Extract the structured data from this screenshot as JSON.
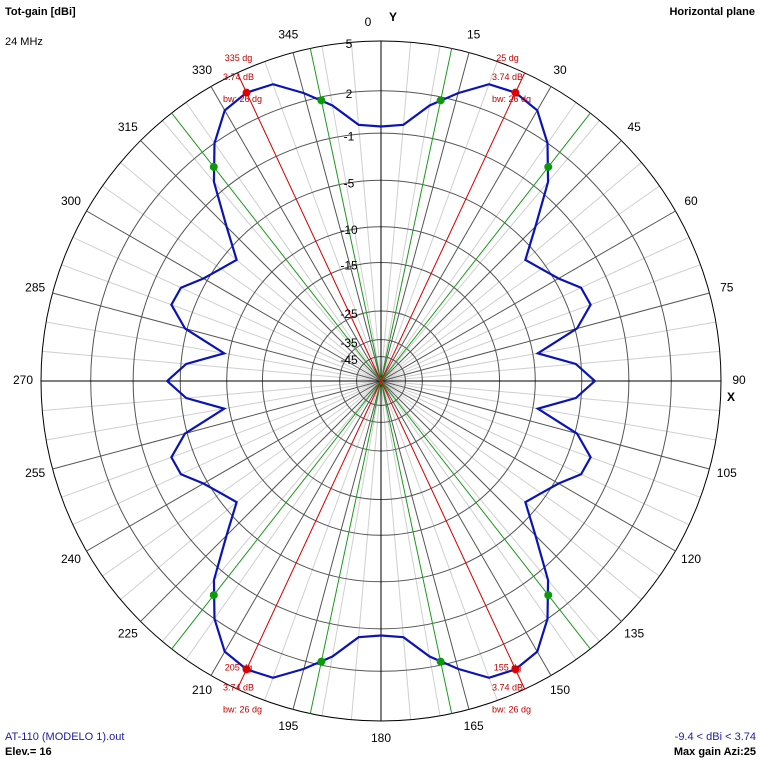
{
  "chart_data": {
    "type": "polar",
    "title": "Tot-gain [dBi]",
    "subtitle": "24 MHz",
    "plane": "Horizontal plane",
    "x_axis_label": "X",
    "y_axis_label": "Y",
    "file": "AT-110 (MODELO 1).out",
    "elevation": "Elev.= 16",
    "range_text": "-9.4 < dBi < 3.74",
    "max_gain_text": "Max gain Azi:25",
    "r_scale": "log",
    "rmax": 5,
    "rticks": [
      5,
      2,
      -1,
      -5,
      -10,
      -15,
      -25,
      -35,
      -45
    ],
    "angle_ticks": [
      0,
      15,
      30,
      45,
      60,
      75,
      90,
      105,
      120,
      135,
      150,
      165,
      180,
      195,
      210,
      225,
      240,
      255,
      270,
      285,
      300,
      315,
      330,
      345
    ],
    "x": [
      0,
      5,
      10,
      15,
      20,
      25,
      30,
      35,
      40,
      45,
      50,
      55,
      60,
      65,
      70,
      75,
      80,
      85,
      90,
      95,
      100,
      105,
      110,
      115,
      120,
      125,
      130,
      135,
      140,
      145,
      150,
      155,
      160,
      165,
      170,
      175,
      180,
      185,
      190,
      195,
      200,
      205,
      210,
      215,
      220,
      225,
      230,
      235,
      240,
      245,
      250,
      255,
      260,
      265,
      270,
      275,
      280,
      285,
      290,
      295,
      300,
      305,
      310,
      315,
      320,
      325,
      330,
      335,
      340,
      345,
      350,
      355
    ],
    "series": [
      {
        "color": "#0a14b4",
        "values": [
          -0.5,
          -0.3,
          1.3,
          2.5,
          3.6,
          3.74,
          3.4,
          2.0,
          -0.1,
          -3.4,
          -6.2,
          -5.5,
          -4.6,
          -3.2,
          -3.0,
          -4.8,
          -9.4,
          -5.5,
          -3.8,
          -5.5,
          -9.4,
          -4.8,
          -3.0,
          -3.2,
          -4.6,
          -5.5,
          -6.2,
          -3.4,
          -0.1,
          2.0,
          3.4,
          3.74,
          3.6,
          2.5,
          1.3,
          -0.3,
          -0.5,
          -0.3,
          1.3,
          2.5,
          3.6,
          3.74,
          3.4,
          2.0,
          -0.1,
          -3.4,
          -6.2,
          -5.5,
          -4.6,
          -3.2,
          -3.0,
          -4.8,
          -9.4,
          -5.5,
          -3.8,
          -5.5,
          -9.4,
          -4.8,
          -3.0,
          -3.2,
          -4.6,
          -5.5,
          -6.2,
          -3.4,
          -0.1,
          2.0,
          3.4,
          3.74,
          3.6,
          2.5,
          1.3,
          -0.3
        ]
      }
    ],
    "beams": [
      {
        "azimuth": 25,
        "gain": 3.74,
        "beamwidth": 26,
        "edges": [
          12,
          38
        ],
        "labels": [
          "25 dg",
          "3.74 dB",
          "bw: 26 dg"
        ]
      },
      {
        "azimuth": 155,
        "gain": 3.74,
        "beamwidth": 26,
        "edges": [
          142,
          168
        ],
        "labels": [
          "155 dg",
          "3.74 dB",
          "bw: 26 dg"
        ]
      },
      {
        "azimuth": 205,
        "gain": 3.74,
        "beamwidth": 26,
        "edges": [
          192,
          218
        ],
        "labels": [
          "205 dg",
          "3.74 dB",
          "bw: 26 dg"
        ]
      },
      {
        "azimuth": 335,
        "gain": 3.74,
        "beamwidth": 26,
        "edges": [
          322,
          348
        ],
        "labels": [
          "335 dg",
          "3.74 dB",
          "bw: 26 dg"
        ]
      }
    ]
  }
}
